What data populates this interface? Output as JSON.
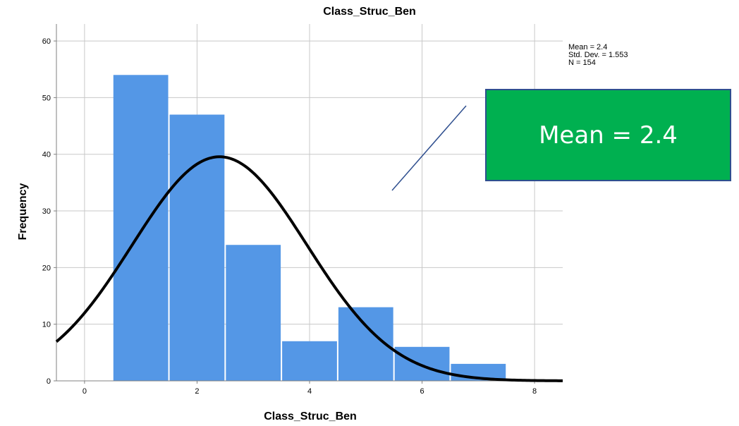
{
  "chart_data": {
    "type": "bar",
    "title": "Class_Struc_Ben",
    "xlabel": "Class_Struc_Ben",
    "ylabel": "Frequency",
    "xlim": [
      -0.5,
      8.5
    ],
    "ylim": [
      0,
      63
    ],
    "x_ticks": [
      "0",
      "2",
      "4",
      "6",
      "8"
    ],
    "y_ticks": [
      "0",
      "10",
      "20",
      "30",
      "40",
      "50",
      "60"
    ],
    "grid": true,
    "bins": [
      {
        "from": 0.5,
        "to": 1.5,
        "value": 54
      },
      {
        "from": 1.5,
        "to": 2.5,
        "value": 47
      },
      {
        "from": 2.5,
        "to": 3.5,
        "value": 24
      },
      {
        "from": 3.5,
        "to": 4.5,
        "value": 7
      },
      {
        "from": 4.5,
        "to": 5.5,
        "value": 13
      },
      {
        "from": 5.5,
        "to": 6.5,
        "value": 6
      },
      {
        "from": 6.5,
        "to": 7.5,
        "value": 3
      }
    ],
    "normal_curve": {
      "mean": 2.4,
      "std_dev": 1.553,
      "n": 154,
      "bin_width": 1
    },
    "stats": [
      "Mean = 2.4",
      "Std. Dev. = 1.553",
      "N = 154"
    ],
    "bar_color": "#5497e6",
    "curve_color": "#000000"
  },
  "callout": {
    "text": "Mean = 2.4",
    "color": "#00b050",
    "border_color": "#2f4f8f",
    "text_color": "#ffffff"
  }
}
